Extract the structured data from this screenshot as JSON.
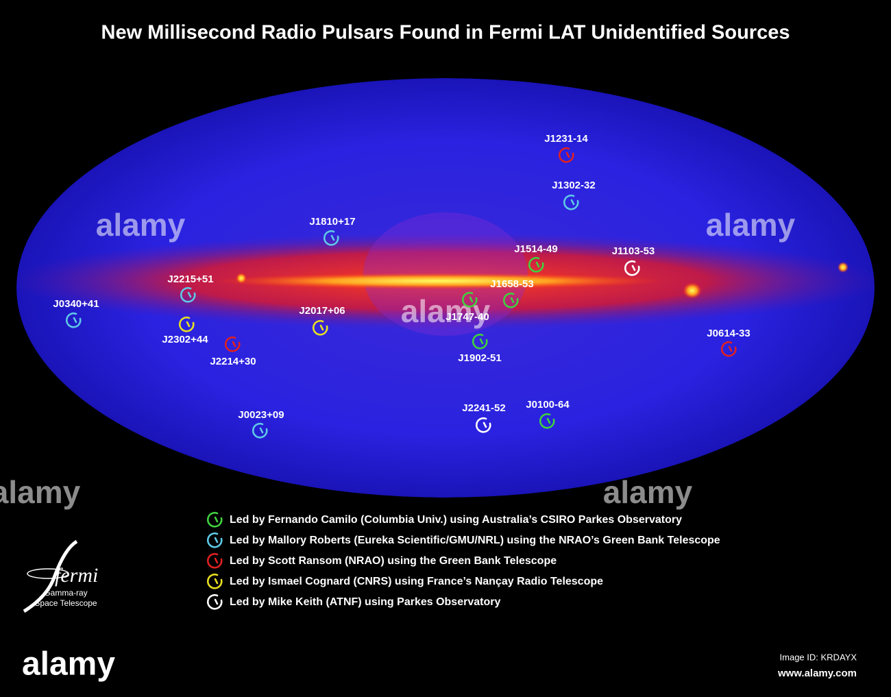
{
  "title": "New Millisecond Radio Pulsars Found in Fermi LAT Unidentified Sources",
  "legend": [
    {
      "color": "#3fd13f",
      "label": "Led by Fernando Camilo (Columbia Univ.) using Australia’s CSIRO Parkes Observatory",
      "pulsars": [
        "J1514-49",
        "J1658-53",
        "J1747-40",
        "J1902-51",
        "J0100-64"
      ]
    },
    {
      "color": "#5ec8e6",
      "label": "Led by Mallory Roberts (Eureka Scientific/GMU/NRL) using the NRAO’s Green Bank Telescope",
      "pulsars": [
        "J1302-32",
        "J1810+17",
        "J2215+51",
        "J0340+41",
        "J0023+09"
      ]
    },
    {
      "color": "#e02020",
      "label": "Led by Scott Ransom (NRAO) using the Green Bank Telescope",
      "pulsars": [
        "J1231-14",
        "J2214+30",
        "J0614-33"
      ]
    },
    {
      "color": "#e8e020",
      "label": "Led by Ismael Cognard (CNRS) using France’s Nançay Radio Telescope",
      "pulsars": [
        "J2017+06",
        "J2302+44"
      ]
    },
    {
      "color": "#ffffff",
      "label": "Led by Mike Keith (ATNF) using Parkes Observatory",
      "pulsars": [
        "J1103-53",
        "J2241-52"
      ]
    }
  ],
  "logo": {
    "name": "fermi",
    "line1": "Gamma-ray",
    "line2": "Space Telescope"
  },
  "watermark": {
    "brand": "alamy",
    "image_id": "Image ID: KRDAYX",
    "url": "www.alamy.com"
  }
}
